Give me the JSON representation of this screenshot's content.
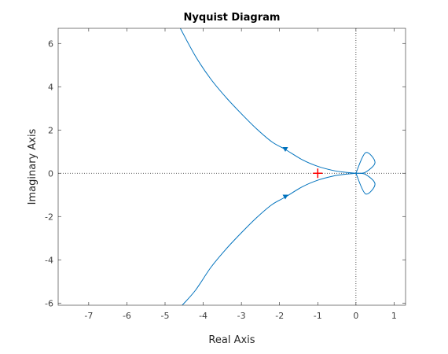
{
  "chart_data": {
    "type": "line",
    "title": "Nyquist Diagram",
    "xlabel": "Real Axis",
    "ylabel": "Imaginary Axis",
    "xlim": [
      -7.8,
      1.3
    ],
    "ylim": [
      -6.1,
      6.7
    ],
    "xticks": [
      -7,
      -6,
      -5,
      -4,
      -3,
      -2,
      -1,
      0,
      1
    ],
    "yticks": [
      -6,
      -4,
      -2,
      0,
      2,
      4,
      6
    ],
    "grid": false,
    "series": [
      {
        "color": "#0072BD",
        "x": [
          -4.6,
          -4.2,
          -3.8,
          -3.4,
          -3.0,
          -2.6,
          -2.2,
          -1.85,
          -1.4,
          -1.0,
          -0.6,
          -0.3,
          0.0
        ],
        "y": [
          6.7,
          5.4,
          4.35,
          3.5,
          2.75,
          2.05,
          1.45,
          1.1,
          0.62,
          0.32,
          0.13,
          0.05,
          0.0
        ]
      },
      {
        "color": "#0072BD",
        "x": [
          0.0,
          -0.3,
          -0.6,
          -1.0,
          -1.4,
          -1.85,
          -2.2,
          -2.6,
          -3.0,
          -3.4,
          -3.8,
          -4.2,
          -4.55
        ],
        "y": [
          0.0,
          -0.05,
          -0.13,
          -0.32,
          -0.62,
          -1.1,
          -1.45,
          -2.05,
          -2.75,
          -3.5,
          -4.35,
          -5.4,
          -6.1
        ]
      }
    ],
    "loops": [
      {
        "color": "#0072BD",
        "x": [
          0.0,
          0.25,
          0.5,
          0.25,
          0.0
        ],
        "y": [
          0.0,
          0.95,
          0.5,
          0.05,
          0.0
        ]
      },
      {
        "color": "#0072BD",
        "x": [
          0.0,
          0.25,
          0.5,
          0.25,
          0.0
        ],
        "y": [
          0.0,
          -0.95,
          -0.5,
          -0.05,
          0.0
        ]
      }
    ],
    "arrows": [
      {
        "x": -1.85,
        "y": 1.1,
        "direction": "down"
      },
      {
        "x": -1.85,
        "y": -1.1,
        "direction": "down"
      }
    ],
    "critical_point": {
      "x": -1,
      "y": 0,
      "marker": "+",
      "color": "#FF0000"
    },
    "reference_lines": {
      "x": 0,
      "y": 0,
      "style": "dotted",
      "color": "#262626"
    }
  }
}
